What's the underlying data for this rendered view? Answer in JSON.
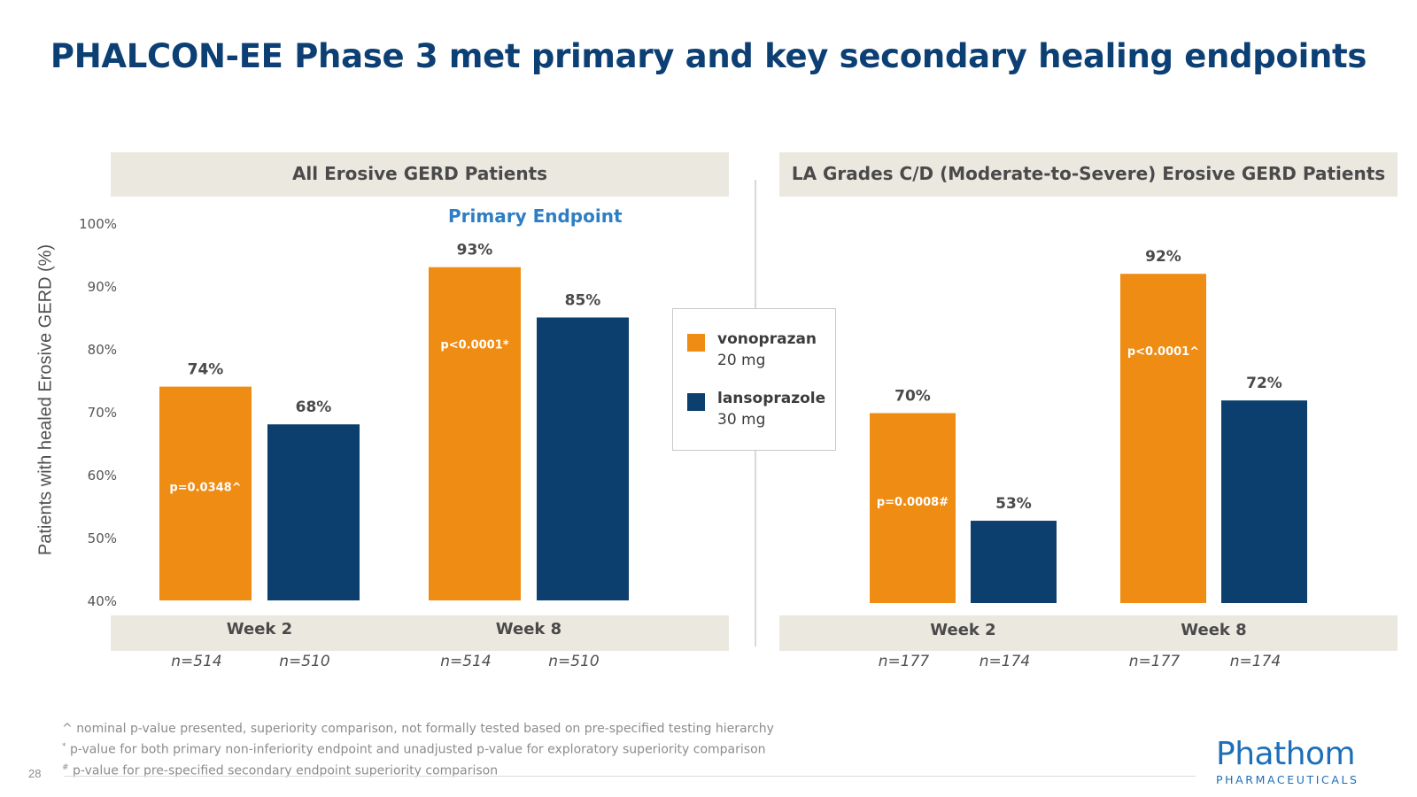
{
  "slide": {
    "title": "PHALCON-EE Phase 3 met primary and key secondary healing endpoints",
    "page_number": "28",
    "footnotes": [
      {
        "mark": "^",
        "text": "nominal p-value presented, superiority comparison, not formally tested based on pre-specified testing hierarchy"
      },
      {
        "mark": "*",
        "text": "p-value for both primary non-inferiority endpoint and unadjusted p-value for exploratory superiority comparison"
      },
      {
        "mark": "#",
        "text": "p-value for pre-specified secondary endpoint superiority comparison"
      }
    ],
    "logo": {
      "name": "Phathom",
      "sub": "PHARMACEUTICALS"
    },
    "legend": [
      {
        "name": "vonoprazan",
        "dose": "20 mg",
        "color": "#ef8c13"
      },
      {
        "name": "lansoprazole",
        "dose": "30 mg",
        "color": "#0c3f6e"
      }
    ]
  },
  "chart_data": [
    {
      "type": "bar",
      "title": "All Erosive GERD Patients",
      "annotation": "Primary Endpoint",
      "ylabel": "Patients with healed Erosive GERD (%)",
      "ylim": [
        40,
        100
      ],
      "yticks": [
        "40%",
        "50%",
        "60%",
        "70%",
        "80%",
        "90%",
        "100%"
      ],
      "categories": [
        "Week 2",
        "Week 8"
      ],
      "series": [
        {
          "name": "vonoprazan",
          "values": [
            74,
            93
          ],
          "labels": [
            "74%",
            "93%"
          ],
          "n": [
            "n=514",
            "n=514"
          ],
          "pvalues": [
            "p=0.0348^",
            "p<0.0001*"
          ]
        },
        {
          "name": "lansoprazole",
          "values": [
            68,
            85
          ],
          "labels": [
            "68%",
            "85%"
          ],
          "n": [
            "n=510",
            "n=510"
          ]
        }
      ]
    },
    {
      "type": "bar",
      "title": "LA Grades C/D (Moderate-to-Severe) Erosive GERD Patients",
      "ylim": [
        40,
        100
      ],
      "categories": [
        "Week 2",
        "Week 8"
      ],
      "series": [
        {
          "name": "vonoprazan",
          "values": [
            70,
            92
          ],
          "labels": [
            "70%",
            "92%"
          ],
          "n": [
            "n=177",
            "n=177"
          ],
          "pvalues": [
            "p=0.0008#",
            "p<0.0001^"
          ]
        },
        {
          "name": "lansoprazole",
          "values": [
            53,
            72
          ],
          "labels": [
            "53%",
            "72%"
          ],
          "n": [
            "n=174",
            "n=174"
          ]
        }
      ]
    }
  ]
}
